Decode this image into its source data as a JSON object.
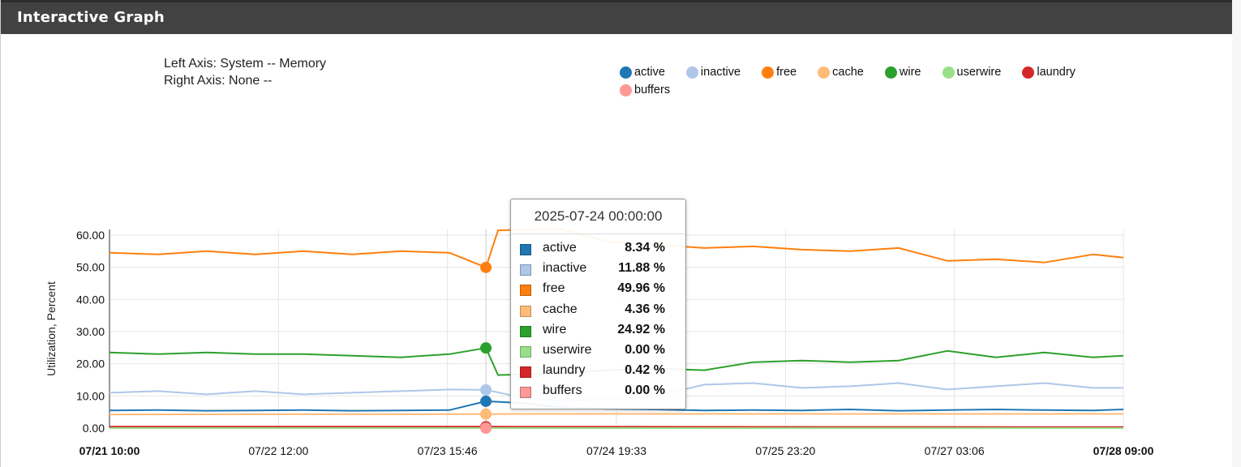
{
  "panel": {
    "title": "Interactive Graph"
  },
  "axis_info": {
    "left": "Left Axis: System -- Memory",
    "right": "Right Axis: None --"
  },
  "colors": {
    "active": "#1f77b4",
    "inactive": "#aec7e8",
    "free": "#ff7f0e",
    "cache": "#ffbb78",
    "wire": "#2ca02c",
    "userwire": "#98df8a",
    "laundry": "#d62728",
    "buffers": "#ff9896"
  },
  "legend": [
    {
      "label": "active",
      "color": "#1f77b4"
    },
    {
      "label": "inactive",
      "color": "#aec7e8"
    },
    {
      "label": "free",
      "color": "#ff7f0e"
    },
    {
      "label": "cache",
      "color": "#ffbb78"
    },
    {
      "label": "wire",
      "color": "#2ca02c"
    },
    {
      "label": "userwire",
      "color": "#98df8a"
    },
    {
      "label": "laundry",
      "color": "#d62728"
    },
    {
      "label": "buffers",
      "color": "#ff9896"
    }
  ],
  "tooltip": {
    "date": "2025-07-24 00:00:00",
    "rows": [
      {
        "name": "active",
        "value": "8.34 %",
        "color": "#1f77b4"
      },
      {
        "name": "inactive",
        "value": "11.88 %",
        "color": "#aec7e8"
      },
      {
        "name": "free",
        "value": "49.96 %",
        "color": "#ff7f0e"
      },
      {
        "name": "cache",
        "value": "4.36 %",
        "color": "#ffbb78"
      },
      {
        "name": "wire",
        "value": "24.92 %",
        "color": "#2ca02c"
      },
      {
        "name": "userwire",
        "value": "0.00 %",
        "color": "#98df8a"
      },
      {
        "name": "laundry",
        "value": "0.42 %",
        "color": "#d62728"
      },
      {
        "name": "buffers",
        "value": "0.00 %",
        "color": "#ff9896"
      }
    ]
  },
  "chart_data": {
    "type": "line",
    "ylabel": "Utilization, Percent",
    "ylim": [
      0,
      60
    ],
    "yticks": [
      "0.00",
      "10.00",
      "20.00",
      "30.00",
      "40.00",
      "50.00",
      "60.00"
    ],
    "xticks": [
      {
        "label": "07/21 10:00",
        "bold": true
      },
      {
        "label": "07/22 12:00",
        "bold": false
      },
      {
        "label": "07/23 15:46",
        "bold": false
      },
      {
        "label": "07/24 19:33",
        "bold": false
      },
      {
        "label": "07/25 23:20",
        "bold": false
      },
      {
        "label": "07/27 03:06",
        "bold": false
      },
      {
        "label": "07/28 09:00",
        "bold": true
      }
    ],
    "grid": true,
    "legend_position": "top-right",
    "x_range": [
      "2025-07-21 10:00",
      "2025-07-28 09:00"
    ],
    "hover_x": "2025-07-24 00:00",
    "series": [
      {
        "name": "active",
        "x": [
          "2025-07-21 10:00",
          "2025-07-21 18:00",
          "2025-07-22 02:00",
          "2025-07-22 10:00",
          "2025-07-22 18:00",
          "2025-07-23 02:00",
          "2025-07-23 10:00",
          "2025-07-23 18:00",
          "2025-07-24 00:00",
          "2025-07-24 06:00",
          "2025-07-24 12:00",
          "2025-07-24 20:00",
          "2025-07-25 04:00",
          "2025-07-25 12:00",
          "2025-07-25 20:00",
          "2025-07-26 04:00",
          "2025-07-26 12:00",
          "2025-07-26 20:00",
          "2025-07-27 04:00",
          "2025-07-27 12:00",
          "2025-07-27 20:00",
          "2025-07-28 04:00",
          "2025-07-28 09:00"
        ],
        "values": [
          5.5,
          5.6,
          5.4,
          5.5,
          5.6,
          5.4,
          5.5,
          5.6,
          8.34,
          7.8,
          6.5,
          6.0,
          5.8,
          5.5,
          5.6,
          5.5,
          5.8,
          5.4,
          5.6,
          5.8,
          5.6,
          5.5,
          5.8
        ]
      },
      {
        "name": "inactive",
        "x": [
          "2025-07-21 10:00",
          "2025-07-21 18:00",
          "2025-07-22 02:00",
          "2025-07-22 10:00",
          "2025-07-22 18:00",
          "2025-07-23 02:00",
          "2025-07-23 10:00",
          "2025-07-23 18:00",
          "2025-07-24 00:00",
          "2025-07-24 06:00",
          "2025-07-24 12:00",
          "2025-07-24 20:00",
          "2025-07-25 04:00",
          "2025-07-25 12:00",
          "2025-07-25 20:00",
          "2025-07-26 04:00",
          "2025-07-26 12:00",
          "2025-07-26 20:00",
          "2025-07-27 04:00",
          "2025-07-27 12:00",
          "2025-07-27 20:00",
          "2025-07-28 04:00",
          "2025-07-28 09:00"
        ],
        "values": [
          11.0,
          11.5,
          10.5,
          11.5,
          10.5,
          11.0,
          11.5,
          12.0,
          11.88,
          9.5,
          8.5,
          9.0,
          10.0,
          13.5,
          14.0,
          12.5,
          13.0,
          14.0,
          12.0,
          13.0,
          14.0,
          12.5,
          12.5
        ]
      },
      {
        "name": "free",
        "x": [
          "2025-07-21 10:00",
          "2025-07-21 18:00",
          "2025-07-22 02:00",
          "2025-07-22 10:00",
          "2025-07-22 18:00",
          "2025-07-23 02:00",
          "2025-07-23 10:00",
          "2025-07-23 18:00",
          "2025-07-24 00:00",
          "2025-07-24 02:00",
          "2025-07-24 12:00",
          "2025-07-24 20:00",
          "2025-07-25 04:00",
          "2025-07-25 12:00",
          "2025-07-25 20:00",
          "2025-07-26 04:00",
          "2025-07-26 12:00",
          "2025-07-26 20:00",
          "2025-07-27 04:00",
          "2025-07-27 12:00",
          "2025-07-27 20:00",
          "2025-07-28 04:00",
          "2025-07-28 09:00"
        ],
        "values": [
          54.5,
          54.0,
          55.0,
          54.0,
          55.0,
          54.0,
          55.0,
          54.5,
          49.96,
          61.5,
          62.0,
          58.0,
          57.0,
          56.0,
          56.5,
          55.5,
          55.0,
          56.0,
          52.0,
          52.5,
          51.5,
          54.0,
          53.0
        ]
      },
      {
        "name": "cache",
        "x": [
          "2025-07-21 10:00",
          "2025-07-22 10:00",
          "2025-07-23 10:00",
          "2025-07-24 00:00",
          "2025-07-25 00:00",
          "2025-07-26 00:00",
          "2025-07-27 00:00",
          "2025-07-28 09:00"
        ],
        "values": [
          4.2,
          4.3,
          4.3,
          4.36,
          4.4,
          4.4,
          4.4,
          4.4
        ]
      },
      {
        "name": "wire",
        "x": [
          "2025-07-21 10:00",
          "2025-07-21 18:00",
          "2025-07-22 02:00",
          "2025-07-22 10:00",
          "2025-07-22 18:00",
          "2025-07-23 02:00",
          "2025-07-23 10:00",
          "2025-07-23 18:00",
          "2025-07-24 00:00",
          "2025-07-24 02:00",
          "2025-07-24 12:00",
          "2025-07-24 20:00",
          "2025-07-25 04:00",
          "2025-07-25 12:00",
          "2025-07-25 20:00",
          "2025-07-26 04:00",
          "2025-07-26 12:00",
          "2025-07-26 20:00",
          "2025-07-27 04:00",
          "2025-07-27 12:00",
          "2025-07-27 20:00",
          "2025-07-28 04:00",
          "2025-07-28 09:00"
        ],
        "values": [
          23.5,
          23.0,
          23.5,
          23.0,
          23.0,
          22.5,
          22.0,
          23.0,
          24.92,
          16.5,
          17.0,
          18.0,
          18.5,
          18.0,
          20.5,
          21.0,
          20.5,
          21.0,
          24.0,
          22.0,
          23.5,
          22.0,
          22.5
        ]
      },
      {
        "name": "userwire",
        "x": [
          "2025-07-21 10:00",
          "2025-07-24 00:00",
          "2025-07-28 09:00"
        ],
        "values": [
          0.0,
          0.0,
          0.0
        ]
      },
      {
        "name": "laundry",
        "x": [
          "2025-07-21 10:00",
          "2025-07-24 00:00",
          "2025-07-28 09:00"
        ],
        "values": [
          0.42,
          0.42,
          0.3
        ]
      },
      {
        "name": "buffers",
        "x": [
          "2025-07-21 10:00",
          "2025-07-24 00:00",
          "2025-07-28 09:00"
        ],
        "values": [
          0.0,
          0.0,
          0.0
        ]
      }
    ]
  }
}
